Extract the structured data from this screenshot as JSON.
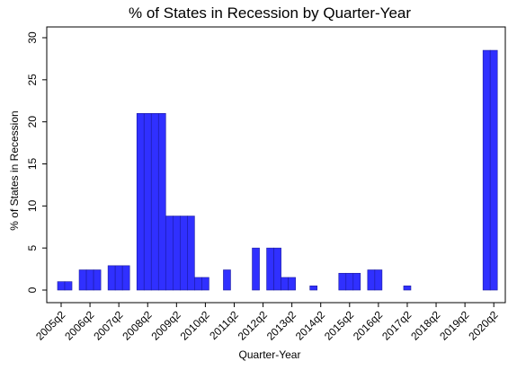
{
  "chart_data": {
    "type": "bar",
    "title": "% of States in Recession by Quarter-Year",
    "x_label": "Quarter-Year",
    "y_label": "% of States in Recession",
    "color": "#3030ff",
    "categories": [
      null,
      "2005q2",
      null,
      null,
      null,
      "2006q2",
      null,
      null,
      null,
      "2007q2",
      null,
      null,
      null,
      "2008q2",
      null,
      null,
      null,
      "2009q2",
      null,
      null,
      null,
      "2010q2",
      null,
      null,
      null,
      "2011q2",
      null,
      null,
      null,
      "2012q2",
      null,
      null,
      null,
      "2013q2",
      null,
      null,
      null,
      "2014q2",
      null,
      null,
      null,
      "2015q2",
      null,
      null,
      null,
      "2016q2",
      null,
      null,
      null,
      "2017q2",
      null,
      null,
      null,
      "2018q2",
      null,
      null,
      null,
      "2019q2",
      null,
      null,
      null,
      "2020q2",
      null
    ],
    "values": [
      0,
      1,
      1,
      0,
      2.4,
      2.4,
      2.4,
      0,
      2.9,
      2.9,
      2.9,
      0,
      21,
      21,
      21,
      21,
      8.8,
      8.8,
      8.8,
      8.8,
      1.5,
      1.5,
      0,
      0,
      2.4,
      0,
      0,
      0,
      5,
      0,
      5,
      5,
      1.5,
      1.5,
      0,
      0,
      0.5,
      0,
      0,
      0,
      2,
      2,
      2,
      0,
      2.4,
      2.4,
      0,
      0,
      0,
      0.5,
      0,
      0,
      0,
      0,
      0,
      0,
      0,
      0,
      0,
      0,
      28.5,
      28.5,
      0
    ],
    "ylim": [
      0,
      30
    ],
    "yticks": [
      0,
      5,
      10,
      15,
      20,
      25,
      30
    ]
  }
}
